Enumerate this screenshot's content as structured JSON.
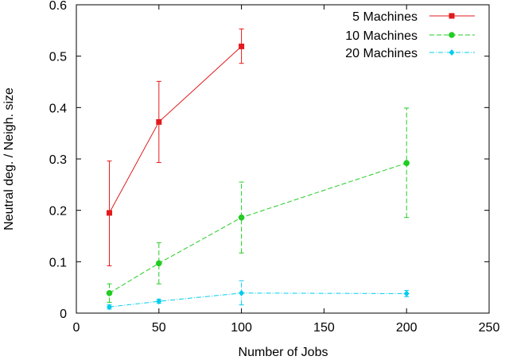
{
  "chart_data": {
    "type": "line",
    "title": "",
    "xlabel": "Number of Jobs",
    "ylabel": "Neutral deg. / Neigh. size",
    "xlim": [
      0,
      250
    ],
    "ylim": [
      0,
      0.6
    ],
    "xticks": [
      "0",
      "50",
      "100",
      "150",
      "200",
      "250"
    ],
    "yticks": [
      "0",
      "0.1",
      "0.2",
      "0.3",
      "0.4",
      "0.5",
      "0.6"
    ],
    "grid": false,
    "legend_position": "top-right",
    "series": [
      {
        "name": "5 Machines",
        "color": "#e31a1c",
        "marker": "square",
        "dash": "solid",
        "x": [
          20,
          50,
          100
        ],
        "y": [
          0.195,
          0.372,
          0.519
        ],
        "err_low": [
          0.092,
          0.293,
          0.486
        ],
        "err_high": [
          0.296,
          0.451,
          0.553
        ]
      },
      {
        "name": "10 Machines",
        "color": "#22cc22",
        "marker": "circle",
        "dash": "dashed",
        "x": [
          20,
          50,
          100,
          200
        ],
        "y": [
          0.039,
          0.097,
          0.186,
          0.292
        ],
        "err_low": [
          0.021,
          0.057,
          0.117,
          0.186
        ],
        "err_high": [
          0.057,
          0.137,
          0.255,
          0.399
        ]
      },
      {
        "name": "20 Machines",
        "color": "#00ccee",
        "marker": "diamond",
        "dash": "dashdot",
        "x": [
          20,
          50,
          100,
          200
        ],
        "y": [
          0.012,
          0.023,
          0.039,
          0.038
        ],
        "err_low": [
          0.008,
          0.019,
          0.016,
          0.032
        ],
        "err_high": [
          0.016,
          0.027,
          0.063,
          0.044
        ]
      }
    ]
  }
}
